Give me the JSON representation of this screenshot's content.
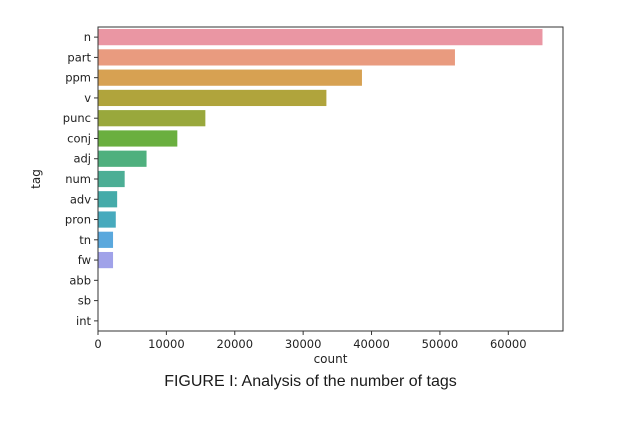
{
  "chart_data": {
    "type": "bar",
    "orientation": "horizontal",
    "categories": [
      "n",
      "part",
      "ppm",
      "v",
      "punc",
      "conj",
      "adj",
      "num",
      "adv",
      "pron",
      "tn",
      "fw",
      "abb",
      "sb",
      "int"
    ],
    "values": [
      65000,
      52200,
      38600,
      33400,
      15700,
      11600,
      7100,
      3900,
      2800,
      2600,
      2200,
      2200,
      0,
      0,
      0
    ],
    "colors": [
      "#ea96a3",
      "#e99b7f",
      "#d7a152",
      "#b0a43c",
      "#99a83c",
      "#6aaf3f",
      "#4fb07e",
      "#4cae95",
      "#45aba9",
      "#47aabd",
      "#5aa8dd",
      "#a0a2e9",
      "#cc9ae6",
      "#e393d0",
      "#e895b5"
    ],
    "xlabel": "count",
    "ylabel": "tag",
    "xlim": [
      0,
      68000
    ],
    "xticks": [
      0,
      10000,
      20000,
      30000,
      40000,
      50000,
      60000
    ],
    "grid": false,
    "legend": "none"
  },
  "caption": "FIGURE I: Analysis of the number of tags"
}
